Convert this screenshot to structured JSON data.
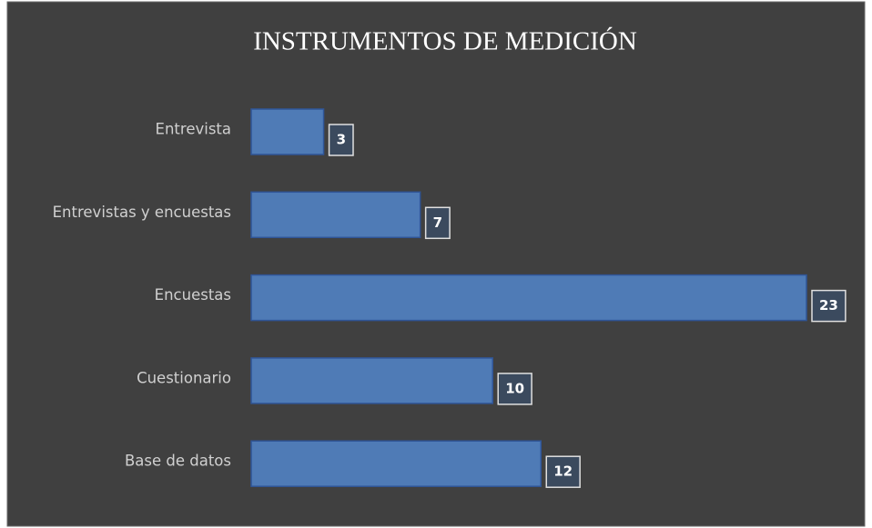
{
  "chart_data": {
    "type": "bar",
    "orientation": "horizontal",
    "title": "INSTRUMENTOS DE MEDICIÓN",
    "categories": [
      "Entrevista",
      "Entrevistas y encuestas",
      "Encuestas",
      "Cuestionario",
      "Base de datos"
    ],
    "values": [
      3,
      7,
      23,
      10,
      12
    ],
    "color": "#4f7bb6"
  }
}
